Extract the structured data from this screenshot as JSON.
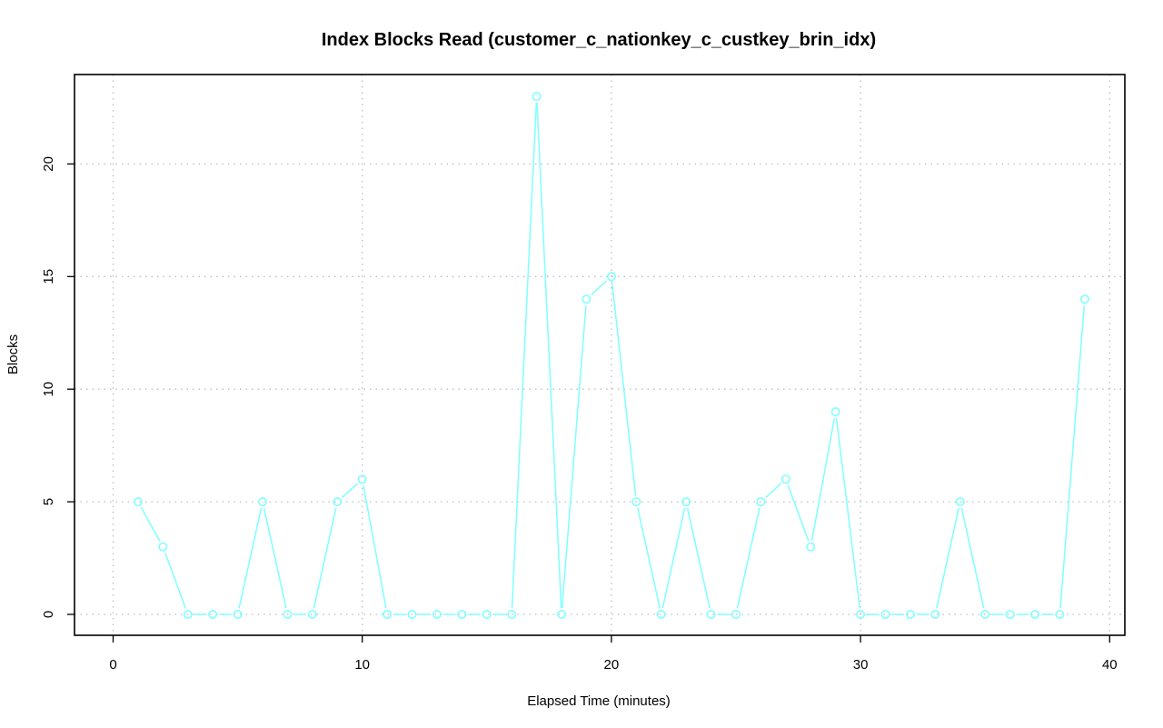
{
  "chart_data": {
    "type": "line",
    "title": "Index Blocks Read (customer_c_nationkey_c_custkey_brin_idx)",
    "xlabel": "Elapsed Time (minutes)",
    "ylabel": "Blocks",
    "xlim": [
      0,
      40
    ],
    "ylim": [
      0,
      23
    ],
    "x_ticks": [
      0,
      10,
      20,
      30,
      40
    ],
    "y_ticks": [
      0,
      5,
      10,
      15,
      20
    ],
    "grid": true,
    "legend": "none",
    "color": "#7fffff",
    "series": [
      {
        "x": [
          1,
          2,
          3,
          4,
          5,
          6,
          7,
          8,
          9,
          10,
          11,
          12,
          13,
          14,
          15,
          16,
          17,
          18,
          19,
          20,
          21,
          22,
          23,
          24,
          25,
          26,
          27,
          28,
          29,
          30,
          31,
          32,
          33,
          34,
          35,
          36,
          37,
          38,
          39
        ],
        "values": [
          5,
          3,
          0,
          0,
          0,
          5,
          0,
          0,
          5,
          6,
          0,
          0,
          0,
          0,
          0,
          0,
          23,
          0,
          14,
          15,
          5,
          0,
          5,
          0,
          0,
          5,
          6,
          3,
          9,
          0,
          0,
          0,
          0,
          5,
          0,
          0,
          0,
          0,
          14
        ]
      }
    ]
  }
}
